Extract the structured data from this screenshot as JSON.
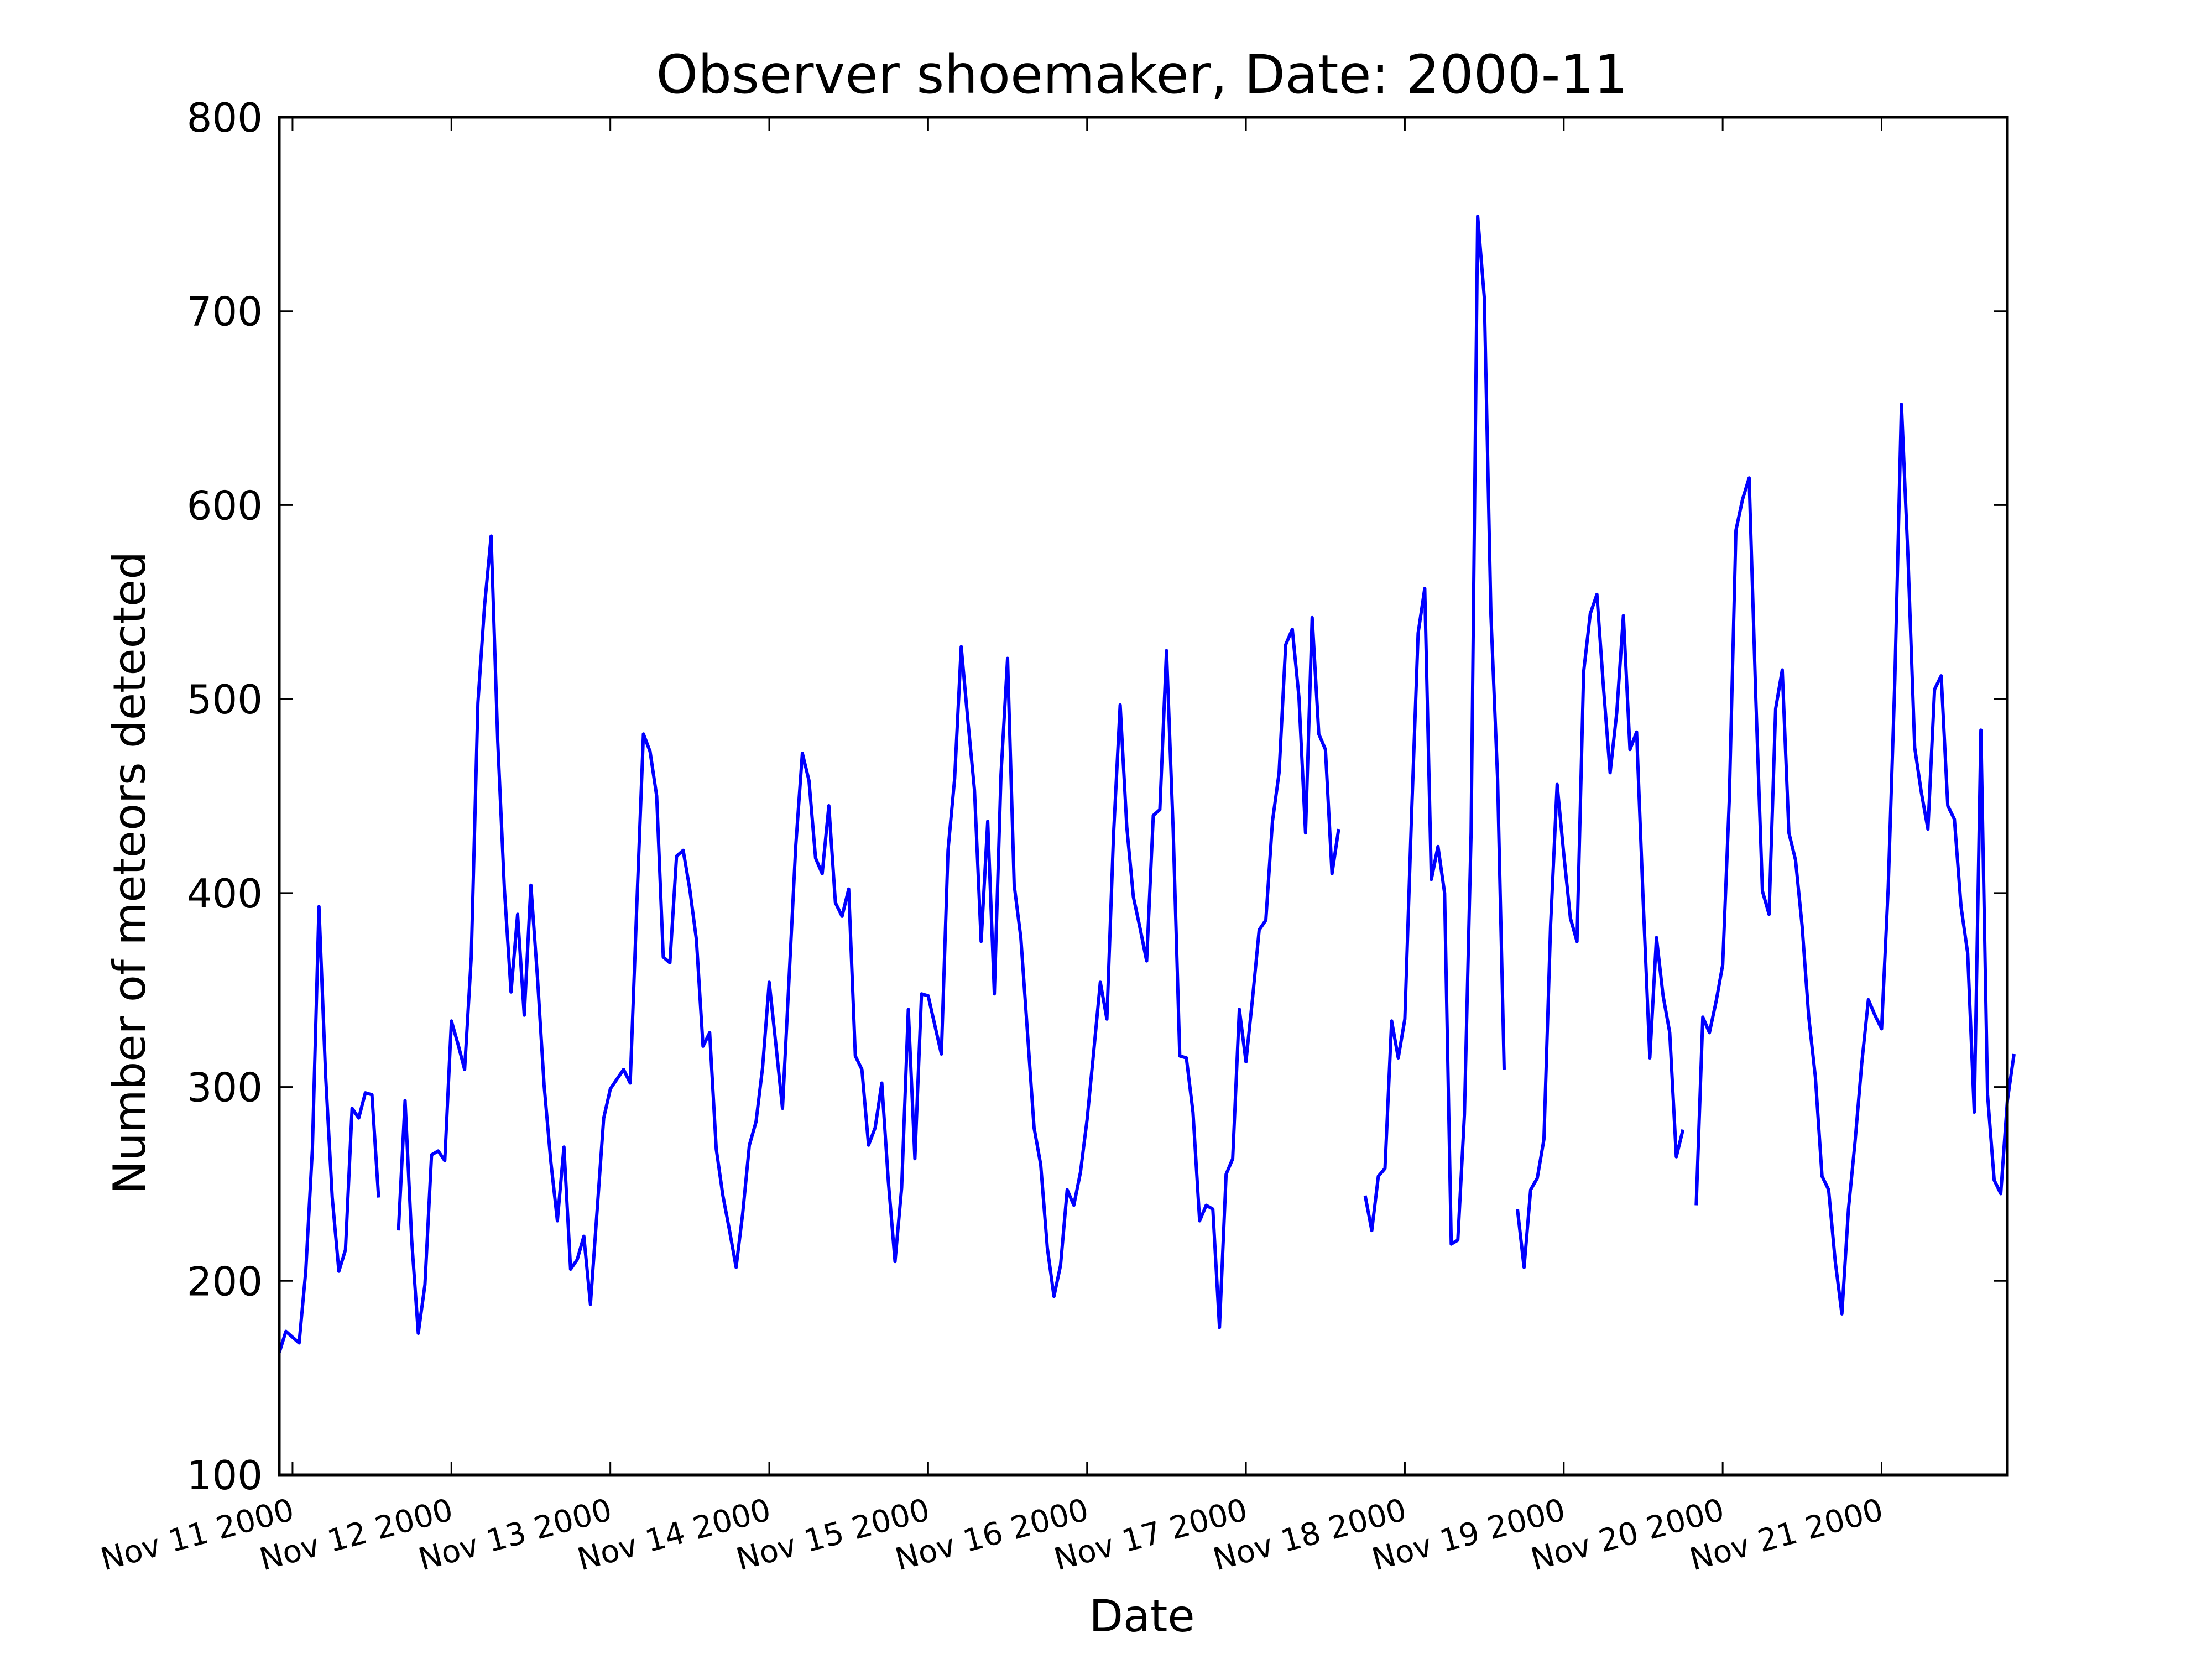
{
  "chart_data": {
    "type": "line",
    "title": "Observer shoemaker, Date: 2000-11",
    "xlabel": "Date",
    "ylabel": "Number of meteors detected",
    "ylim": [
      100,
      800
    ],
    "xlim": [
      "2000-11-10 22:00",
      "2000-11-21 19:00"
    ],
    "yticks": [
      100,
      200,
      300,
      400,
      500,
      600,
      700,
      800
    ],
    "xticks": [
      {
        "date": "2000-11-11",
        "label": "Nov 11 2000"
      },
      {
        "date": "2000-11-12",
        "label": "Nov 12 2000"
      },
      {
        "date": "2000-11-13",
        "label": "Nov 13 2000"
      },
      {
        "date": "2000-11-14",
        "label": "Nov 14 2000"
      },
      {
        "date": "2000-11-15",
        "label": "Nov 15 2000"
      },
      {
        "date": "2000-11-16",
        "label": "Nov 16 2000"
      },
      {
        "date": "2000-11-17",
        "label": "Nov 17 2000"
      },
      {
        "date": "2000-11-18",
        "label": "Nov 18 2000"
      },
      {
        "date": "2000-11-19",
        "label": "Nov 19 2000"
      },
      {
        "date": "2000-11-20",
        "label": "Nov 20 2000"
      },
      {
        "date": "2000-11-21",
        "label": "Nov 21 2000"
      }
    ],
    "grid": false,
    "legend": "none",
    "line_color": "#0000ff",
    "series": [
      {
        "segments": [
          {
            "start": "2000-11-10 22:00",
            "values": [
              163,
              174,
              171,
              168,
              205,
              268,
              393,
              306,
              243,
              205,
              216,
              289,
              284,
              297,
              296,
              243
            ]
          },
          {
            "start": "2000-11-11 16:00",
            "values": [
              226,
              293,
              221,
              173,
              198,
              265,
              267,
              262,
              334,
              322,
              309,
              367,
              498,
              548,
              584,
              478,
              402,
              349,
              389,
              337,
              404,
              356,
              301,
              262,
              231,
              269,
              206,
              211,
              223,
              188,
              236,
              284,
              299,
              304,
              309,
              302,
              394,
              482,
              473,
              450,
              367,
              364,
              419,
              422,
              402,
              376,
              321,
              328,
              268,
              244,
              226,
              207,
              235,
              270,
              282,
              310,
              354,
              322,
              289,
              356,
              424,
              472,
              458,
              418,
              410,
              445,
              395,
              388,
              402,
              316,
              309,
              270,
              279,
              302,
              251,
              210,
              248,
              340,
              263,
              348,
              347,
              332,
              317,
              422,
              459,
              527,
              489,
              453,
              375,
              437,
              348,
              461,
              521,
              404,
              377,
              328,
              279,
              260,
              217,
              192,
              208,
              247,
              239,
              256,
              283,
              318,
              354,
              335,
              430,
              497,
              434,
              398,
              382,
              365,
              440,
              443,
              525,
              433,
              316,
              315,
              287,
              231,
              239,
              237,
              176,
              255,
              263,
              340,
              313,
              346,
              381,
              386,
              437,
              462,
              528,
              536,
              501,
              431,
              542,
              482,
              474,
              410,
              433
            ]
          },
          {
            "start": "2000-11-17 18:00",
            "values": [
              244,
              226,
              254,
              258,
              334,
              315,
              335,
              439,
              534,
              557,
              407,
              424,
              400,
              219,
              221,
              286,
              431,
              749,
              707,
              543,
              459,
              309
            ]
          },
          {
            "start": "2000-11-18 17:00",
            "values": [
              237,
              207,
              247,
              253,
              273,
              383,
              456,
              420,
              387,
              375,
              514,
              544,
              554,
              506,
              462,
              493,
              543,
              474,
              483,
              395,
              315,
              377,
              347,
              328,
              264,
              278
            ]
          },
          {
            "start": "2000-11-19 20:00",
            "values": [
              239,
              336,
              328,
              344,
              363,
              448,
              587,
              603,
              614,
              501,
              401,
              389,
              495,
              515,
              431,
              417,
              383,
              336,
              305,
              254,
              247,
              210,
              183,
              237,
              272,
              312,
              345,
              337,
              330,
              403,
              510,
              652,
              572,
              475,
              452,
              433,
              505,
              512,
              445,
              438,
              393,
              369,
              287,
              484,
              296,
              252,
              245,
              293,
              317
            ]
          }
        ]
      }
    ]
  }
}
